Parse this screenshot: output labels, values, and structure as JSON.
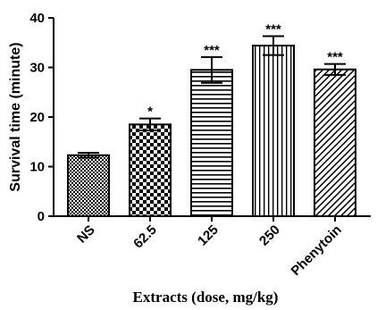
{
  "chart_data": {
    "type": "bar",
    "categories": [
      "NS",
      "62.5",
      "125",
      "250",
      "Phenytoin"
    ],
    "values": [
      12.3,
      18.5,
      29.5,
      34.4,
      29.6
    ],
    "errors": [
      0.5,
      1.2,
      2.6,
      1.9,
      1.1
    ],
    "significance": [
      "",
      "*",
      "***",
      "***",
      "***"
    ],
    "xlabel": "Extracts (dose, mg/kg)",
    "ylabel": "Survival time (minute)",
    "ylim": [
      0,
      40
    ],
    "yticks": [
      "0",
      "10",
      "20",
      "30",
      "40"
    ],
    "patterns": [
      "dense-checker",
      "checker",
      "horizontal-lines",
      "vertical-lines",
      "diagonal-lines"
    ],
    "grid": false,
    "legend": "none"
  }
}
